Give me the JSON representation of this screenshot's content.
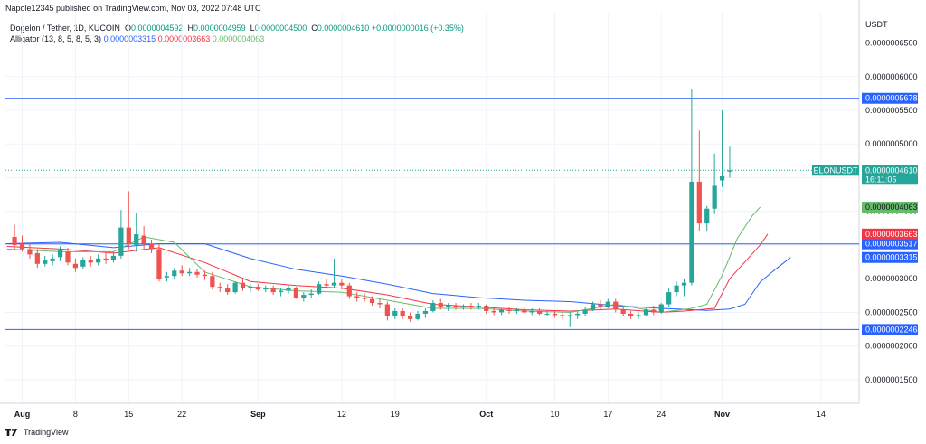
{
  "header": {
    "published_line": "Napole12345 published on TradingView.com, Nov 03, 2022 07:48 UTC",
    "currency": "USDT"
  },
  "legend": {
    "symbol": "Dogelon / Tether, 1D, KUCOIN",
    "ohlc": [
      {
        "key": "O",
        "value": "0.0000004592"
      },
      {
        "key": "H",
        "value": "0.0000004959"
      },
      {
        "key": "L",
        "value": "0.0000004500"
      },
      {
        "key": "C",
        "value": "0.0000004610"
      }
    ],
    "change": "+0.0000000016 (+0.35%)",
    "indicator": "Alligator (13, 8, 5, 8, 5, 3)",
    "jaw": "0.0000003315",
    "teeth": "0.0000003663",
    "lips": "0.0000004063"
  },
  "footer": {
    "brand": "TradingView"
  },
  "colors": {
    "up": "#26a69a",
    "down": "#ef5350",
    "jaw": "#2962ff",
    "teeth": "#f23645",
    "lips": "#66bb6a",
    "hline": "#2962ff",
    "grid": "#f0f3fa",
    "text": "#131722"
  },
  "chart_data": {
    "type": "candlestick",
    "symbol_tag": "ELONUSDT",
    "countdown": "16:11:05",
    "y_ticks": [
      "0.0000006500",
      "0.0000006000",
      "0.0000005500",
      "0.0000005000",
      "0.0000004500",
      "0.0000004000",
      "0.0000003500",
      "0.0000003000",
      "0.0000002500",
      "0.0000002000",
      "0.0000001500"
    ],
    "y_tick_values": [
      6.5e-07,
      6e-07,
      5.5e-07,
      5e-07,
      4.5e-07,
      4e-07,
      3.5e-07,
      3e-07,
      2.5e-07,
      2e-07,
      1.5e-07
    ],
    "y_range": [
      1.15e-07,
      6.95e-07
    ],
    "x_ticks": [
      {
        "label": "Aug",
        "day": 0
      },
      {
        "label": "8",
        "day": 7
      },
      {
        "label": "15",
        "day": 14
      },
      {
        "label": "22",
        "day": 21
      },
      {
        "label": "Sep",
        "day": 31
      },
      {
        "label": "12",
        "day": 42
      },
      {
        "label": "19",
        "day": 49
      },
      {
        "label": "Oct",
        "day": 61
      },
      {
        "label": "10",
        "day": 70
      },
      {
        "label": "17",
        "day": 77
      },
      {
        "label": "24",
        "day": 84
      },
      {
        "label": "Nov",
        "day": 92
      },
      {
        "label": "14",
        "day": 105
      }
    ],
    "x_range_days": [
      -2.2,
      110
    ],
    "horizontal_lines": [
      {
        "value": 5.678e-07,
        "label": "0.0000005678"
      },
      {
        "value": 3.517e-07,
        "label": "0.0000003517"
      },
      {
        "value": 2.246e-07,
        "label": "0.0000002246"
      }
    ],
    "price_tags": [
      {
        "value": 4.61e-07,
        "label": "0.0000004610",
        "kind": "last"
      },
      {
        "value": 4.063e-07,
        "label": "0.0000004063",
        "kind": "lips"
      },
      {
        "value": 3.663e-07,
        "label": "0.0000003663",
        "kind": "teeth"
      },
      {
        "value": 3.315e-07,
        "label": "0.0000003315",
        "kind": "jaw"
      }
    ],
    "candles": [
      {
        "d": -1,
        "o": 3.62,
        "h": 3.8,
        "l": 3.44,
        "c": 3.5
      },
      {
        "d": 0,
        "o": 3.52,
        "h": 3.64,
        "l": 3.4,
        "c": 3.44
      },
      {
        "d": 1,
        "o": 3.44,
        "h": 3.52,
        "l": 3.3,
        "c": 3.36
      },
      {
        "d": 2,
        "o": 3.38,
        "h": 3.44,
        "l": 3.16,
        "c": 3.22
      },
      {
        "d": 3,
        "o": 3.22,
        "h": 3.34,
        "l": 3.18,
        "c": 3.28
      },
      {
        "d": 4,
        "o": 3.26,
        "h": 3.36,
        "l": 3.2,
        "c": 3.3
      },
      {
        "d": 5,
        "o": 3.32,
        "h": 3.48,
        "l": 3.26,
        "c": 3.42
      },
      {
        "d": 6,
        "o": 3.4,
        "h": 3.46,
        "l": 3.2,
        "c": 3.24
      },
      {
        "d": 7,
        "o": 3.22,
        "h": 3.3,
        "l": 3.1,
        "c": 3.16
      },
      {
        "d": 8,
        "o": 3.18,
        "h": 3.32,
        "l": 3.14,
        "c": 3.28
      },
      {
        "d": 9,
        "o": 3.28,
        "h": 3.34,
        "l": 3.18,
        "c": 3.24
      },
      {
        "d": 10,
        "o": 3.24,
        "h": 3.36,
        "l": 3.2,
        "c": 3.3
      },
      {
        "d": 11,
        "o": 3.3,
        "h": 3.38,
        "l": 3.22,
        "c": 3.28
      },
      {
        "d": 12,
        "o": 3.28,
        "h": 3.4,
        "l": 3.24,
        "c": 3.34
      },
      {
        "d": 13,
        "o": 3.34,
        "h": 4.02,
        "l": 3.3,
        "c": 3.76
      },
      {
        "d": 14,
        "o": 3.76,
        "h": 4.3,
        "l": 3.44,
        "c": 3.52
      },
      {
        "d": 15,
        "o": 3.5,
        "h": 3.98,
        "l": 3.4,
        "c": 3.66
      },
      {
        "d": 16,
        "o": 3.64,
        "h": 3.78,
        "l": 3.44,
        "c": 3.52
      },
      {
        "d": 17,
        "o": 3.52,
        "h": 3.58,
        "l": 3.38,
        "c": 3.44
      },
      {
        "d": 18,
        "o": 3.44,
        "h": 3.52,
        "l": 2.96,
        "c": 3.0
      },
      {
        "d": 19,
        "o": 3.02,
        "h": 3.1,
        "l": 2.96,
        "c": 3.04
      },
      {
        "d": 20,
        "o": 3.04,
        "h": 3.16,
        "l": 3.0,
        "c": 3.12
      },
      {
        "d": 21,
        "o": 3.12,
        "h": 3.2,
        "l": 3.04,
        "c": 3.08
      },
      {
        "d": 22,
        "o": 3.08,
        "h": 3.16,
        "l": 3.04,
        "c": 3.1
      },
      {
        "d": 23,
        "o": 3.1,
        "h": 3.14,
        "l": 3.02,
        "c": 3.06
      },
      {
        "d": 24,
        "o": 3.06,
        "h": 3.12,
        "l": 2.98,
        "c": 3.04
      },
      {
        "d": 25,
        "o": 3.04,
        "h": 3.1,
        "l": 2.84,
        "c": 2.88
      },
      {
        "d": 26,
        "o": 2.88,
        "h": 2.94,
        "l": 2.8,
        "c": 2.86
      },
      {
        "d": 27,
        "o": 2.86,
        "h": 2.92,
        "l": 2.76,
        "c": 2.8
      },
      {
        "d": 28,
        "o": 2.8,
        "h": 2.96,
        "l": 2.78,
        "c": 2.94
      },
      {
        "d": 29,
        "o": 2.94,
        "h": 3.0,
        "l": 2.82,
        "c": 2.86
      },
      {
        "d": 30,
        "o": 2.86,
        "h": 2.92,
        "l": 2.8,
        "c": 2.88
      },
      {
        "d": 31,
        "o": 2.88,
        "h": 2.92,
        "l": 2.82,
        "c": 2.84
      },
      {
        "d": 32,
        "o": 2.84,
        "h": 2.9,
        "l": 2.8,
        "c": 2.86
      },
      {
        "d": 33,
        "o": 2.86,
        "h": 2.9,
        "l": 2.76,
        "c": 2.8
      },
      {
        "d": 34,
        "o": 2.8,
        "h": 2.86,
        "l": 2.74,
        "c": 2.82
      },
      {
        "d": 35,
        "o": 2.82,
        "h": 2.9,
        "l": 2.78,
        "c": 2.86
      },
      {
        "d": 36,
        "o": 2.86,
        "h": 2.88,
        "l": 2.7,
        "c": 2.72
      },
      {
        "d": 37,
        "o": 2.72,
        "h": 2.8,
        "l": 2.66,
        "c": 2.76
      },
      {
        "d": 38,
        "o": 2.76,
        "h": 2.84,
        "l": 2.72,
        "c": 2.78
      },
      {
        "d": 39,
        "o": 2.78,
        "h": 2.96,
        "l": 2.76,
        "c": 2.92
      },
      {
        "d": 40,
        "o": 2.92,
        "h": 3.0,
        "l": 2.86,
        "c": 2.9
      },
      {
        "d": 41,
        "o": 2.9,
        "h": 3.3,
        "l": 2.86,
        "c": 2.94
      },
      {
        "d": 42,
        "o": 2.94,
        "h": 3.0,
        "l": 2.84,
        "c": 2.9
      },
      {
        "d": 43,
        "o": 2.9,
        "h": 2.94,
        "l": 2.7,
        "c": 2.74
      },
      {
        "d": 44,
        "o": 2.74,
        "h": 2.8,
        "l": 2.66,
        "c": 2.72
      },
      {
        "d": 45,
        "o": 2.72,
        "h": 2.78,
        "l": 2.66,
        "c": 2.7
      },
      {
        "d": 46,
        "o": 2.7,
        "h": 2.74,
        "l": 2.6,
        "c": 2.64
      },
      {
        "d": 47,
        "o": 2.64,
        "h": 2.7,
        "l": 2.56,
        "c": 2.62
      },
      {
        "d": 48,
        "o": 2.62,
        "h": 2.66,
        "l": 2.38,
        "c": 2.44
      },
      {
        "d": 49,
        "o": 2.44,
        "h": 2.56,
        "l": 2.4,
        "c": 2.52
      },
      {
        "d": 50,
        "o": 2.52,
        "h": 2.56,
        "l": 2.4,
        "c": 2.44
      },
      {
        "d": 51,
        "o": 2.44,
        "h": 2.5,
        "l": 2.36,
        "c": 2.4
      },
      {
        "d": 52,
        "o": 2.4,
        "h": 2.52,
        "l": 2.38,
        "c": 2.48
      },
      {
        "d": 53,
        "o": 2.48,
        "h": 2.56,
        "l": 2.42,
        "c": 2.52
      },
      {
        "d": 54,
        "o": 2.52,
        "h": 2.68,
        "l": 2.5,
        "c": 2.64
      },
      {
        "d": 55,
        "o": 2.64,
        "h": 2.7,
        "l": 2.54,
        "c": 2.58
      },
      {
        "d": 56,
        "o": 2.58,
        "h": 2.64,
        "l": 2.52,
        "c": 2.6
      },
      {
        "d": 57,
        "o": 2.6,
        "h": 2.64,
        "l": 2.54,
        "c": 2.58
      },
      {
        "d": 58,
        "o": 2.58,
        "h": 2.62,
        "l": 2.54,
        "c": 2.6
      },
      {
        "d": 59,
        "o": 2.6,
        "h": 2.64,
        "l": 2.54,
        "c": 2.58
      },
      {
        "d": 60,
        "o": 2.58,
        "h": 2.64,
        "l": 2.54,
        "c": 2.6
      },
      {
        "d": 61,
        "o": 2.6,
        "h": 2.62,
        "l": 2.48,
        "c": 2.52
      },
      {
        "d": 62,
        "o": 2.52,
        "h": 2.56,
        "l": 2.46,
        "c": 2.5
      },
      {
        "d": 63,
        "o": 2.5,
        "h": 2.56,
        "l": 2.46,
        "c": 2.54
      },
      {
        "d": 64,
        "o": 2.54,
        "h": 2.58,
        "l": 2.48,
        "c": 2.52
      },
      {
        "d": 65,
        "o": 2.52,
        "h": 2.56,
        "l": 2.48,
        "c": 2.54
      },
      {
        "d": 66,
        "o": 2.54,
        "h": 2.58,
        "l": 2.48,
        "c": 2.5
      },
      {
        "d": 67,
        "o": 2.5,
        "h": 2.56,
        "l": 2.46,
        "c": 2.52
      },
      {
        "d": 68,
        "o": 2.52,
        "h": 2.56,
        "l": 2.46,
        "c": 2.48
      },
      {
        "d": 69,
        "o": 2.48,
        "h": 2.52,
        "l": 2.44,
        "c": 2.48
      },
      {
        "d": 70,
        "o": 2.48,
        "h": 2.52,
        "l": 2.42,
        "c": 2.46
      },
      {
        "d": 71,
        "o": 2.46,
        "h": 2.5,
        "l": 2.4,
        "c": 2.44
      },
      {
        "d": 72,
        "o": 2.44,
        "h": 2.5,
        "l": 2.28,
        "c": 2.46
      },
      {
        "d": 73,
        "o": 2.46,
        "h": 2.52,
        "l": 2.4,
        "c": 2.48
      },
      {
        "d": 74,
        "o": 2.48,
        "h": 2.58,
        "l": 2.44,
        "c": 2.54
      },
      {
        "d": 75,
        "o": 2.54,
        "h": 2.66,
        "l": 2.52,
        "c": 2.62
      },
      {
        "d": 76,
        "o": 2.62,
        "h": 2.68,
        "l": 2.54,
        "c": 2.58
      },
      {
        "d": 77,
        "o": 2.58,
        "h": 2.7,
        "l": 2.56,
        "c": 2.66
      },
      {
        "d": 78,
        "o": 2.66,
        "h": 2.7,
        "l": 2.5,
        "c": 2.54
      },
      {
        "d": 79,
        "o": 2.54,
        "h": 2.58,
        "l": 2.44,
        "c": 2.48
      },
      {
        "d": 80,
        "o": 2.48,
        "h": 2.52,
        "l": 2.4,
        "c": 2.44
      },
      {
        "d": 81,
        "o": 2.44,
        "h": 2.5,
        "l": 2.4,
        "c": 2.46
      },
      {
        "d": 82,
        "o": 2.46,
        "h": 2.56,
        "l": 2.44,
        "c": 2.54
      },
      {
        "d": 83,
        "o": 2.54,
        "h": 2.6,
        "l": 2.46,
        "c": 2.5
      },
      {
        "d": 84,
        "o": 2.5,
        "h": 2.64,
        "l": 2.48,
        "c": 2.62
      },
      {
        "d": 85,
        "o": 2.62,
        "h": 2.86,
        "l": 2.58,
        "c": 2.8
      },
      {
        "d": 86,
        "o": 2.8,
        "h": 2.96,
        "l": 2.74,
        "c": 2.9
      },
      {
        "d": 87,
        "o": 2.9,
        "h": 3.0,
        "l": 2.74,
        "c": 2.94
      },
      {
        "d": 88,
        "o": 2.94,
        "h": 5.82,
        "l": 2.9,
        "c": 4.44
      },
      {
        "d": 89,
        "o": 4.44,
        "h": 5.2,
        "l": 3.7,
        "c": 3.82
      },
      {
        "d": 90,
        "o": 3.82,
        "h": 4.08,
        "l": 3.7,
        "c": 4.04
      },
      {
        "d": 91,
        "o": 4.04,
        "h": 4.86,
        "l": 3.96,
        "c": 4.38
      },
      {
        "d": 92,
        "o": 4.46,
        "h": 5.5,
        "l": 4.36,
        "c": 4.52
      },
      {
        "d": 93,
        "o": 4.59,
        "h": 4.96,
        "l": 4.5,
        "c": 4.61
      }
    ],
    "alligator": {
      "jaw": [
        [
          -2,
          3.52
        ],
        [
          5,
          3.54
        ],
        [
          12,
          3.46
        ],
        [
          18,
          3.52
        ],
        [
          24,
          3.52
        ],
        [
          30,
          3.3
        ],
        [
          36,
          3.14
        ],
        [
          42,
          3.04
        ],
        [
          48,
          2.92
        ],
        [
          54,
          2.78
        ],
        [
          60,
          2.72
        ],
        [
          66,
          2.68
        ],
        [
          72,
          2.66
        ],
        [
          78,
          2.6
        ],
        [
          84,
          2.56
        ],
        [
          90,
          2.53
        ],
        [
          93,
          2.55
        ],
        [
          95,
          2.62
        ],
        [
          97,
          2.95
        ],
        [
          99,
          3.14
        ],
        [
          101,
          3.315
        ]
      ],
      "teeth": [
        [
          -2,
          3.48
        ],
        [
          5,
          3.44
        ],
        [
          12,
          3.38
        ],
        [
          18,
          3.46
        ],
        [
          24,
          3.24
        ],
        [
          30,
          2.96
        ],
        [
          36,
          2.9
        ],
        [
          42,
          2.86
        ],
        [
          48,
          2.76
        ],
        [
          54,
          2.62
        ],
        [
          60,
          2.58
        ],
        [
          66,
          2.54
        ],
        [
          72,
          2.52
        ],
        [
          78,
          2.55
        ],
        [
          84,
          2.5
        ],
        [
          87,
          2.52
        ],
        [
          91,
          2.56
        ],
        [
          93,
          3.0
        ],
        [
          95,
          3.25
        ],
        [
          97,
          3.5
        ],
        [
          98,
          3.663
        ]
      ],
      "lips": [
        [
          -2,
          3.44
        ],
        [
          5,
          3.4
        ],
        [
          12,
          3.4
        ],
        [
          16,
          3.62
        ],
        [
          20,
          3.54
        ],
        [
          24,
          3.1
        ],
        [
          30,
          2.88
        ],
        [
          36,
          2.82
        ],
        [
          42,
          2.8
        ],
        [
          48,
          2.68
        ],
        [
          54,
          2.56
        ],
        [
          60,
          2.56
        ],
        [
          66,
          2.52
        ],
        [
          72,
          2.5
        ],
        [
          78,
          2.62
        ],
        [
          84,
          2.5
        ],
        [
          88,
          2.56
        ],
        [
          90,
          2.62
        ],
        [
          92,
          3.05
        ],
        [
          94,
          3.6
        ],
        [
          96,
          3.94
        ],
        [
          97,
          4.063
        ]
      ]
    }
  }
}
